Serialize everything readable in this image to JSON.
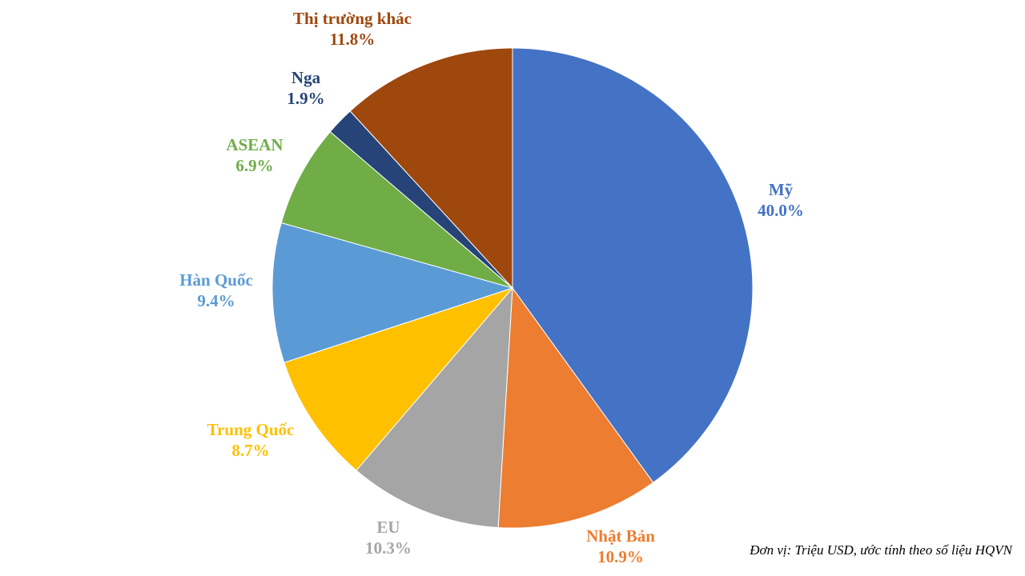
{
  "chart_data": {
    "type": "pie",
    "start_angle": "top",
    "direction": "clockwise",
    "slices": [
      {
        "label": "Mỹ",
        "value": 40.0,
        "value_text": "40.0%",
        "color": "#4472C4"
      },
      {
        "label": "Nhật Bản",
        "value": 10.9,
        "value_text": "10.9%",
        "color": "#ED7D31"
      },
      {
        "label": "EU",
        "value": 10.3,
        "value_text": "10.3%",
        "color": "#A5A5A5"
      },
      {
        "label": "Trung Quốc",
        "value": 8.7,
        "value_text": "8.7%",
        "color": "#FFC000"
      },
      {
        "label": "Hàn Quốc",
        "value": 9.4,
        "value_text": "9.4%",
        "color": "#5B9BD5"
      },
      {
        "label": "ASEAN",
        "value": 6.9,
        "value_text": "6.9%",
        "color": "#70AD47"
      },
      {
        "label": "Nga",
        "value": 1.9,
        "value_text": "1.9%",
        "color": "#264478"
      },
      {
        "label": "Thị trường khác",
        "value": 11.8,
        "value_text": "11.8%",
        "color": "#9E480E"
      }
    ]
  },
  "note": "Đơn vị:  Triệu USD, ước tính theo số liệu HQVN"
}
